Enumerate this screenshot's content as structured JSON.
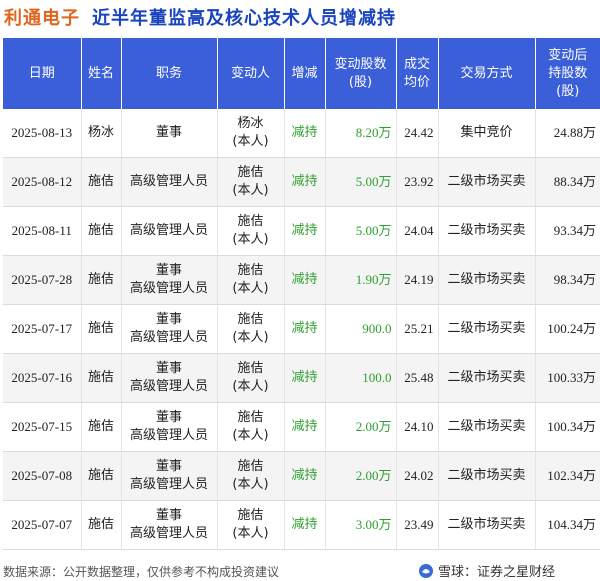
{
  "title": {
    "stock_name": "利通电子",
    "heading": "近半年董监高及核心技术人员增减持"
  },
  "table": {
    "headers": [
      "日期",
      "姓名",
      "职务",
      "变动人",
      "增减",
      "变动股数\n(股)",
      "成交\n均价",
      "交易方式",
      "变动后\n持股数\n(股)"
    ],
    "rows": [
      {
        "date": "2025-08-13",
        "name": "杨冰",
        "position": [
          "董事"
        ],
        "changer": [
          "杨冰",
          "(本人)"
        ],
        "direction": "减持",
        "shares": "8.20万",
        "price": "24.42",
        "method": "集中竞价",
        "after": "24.88万"
      },
      {
        "date": "2025-08-12",
        "name": "施佶",
        "position": [
          "高级管理人员"
        ],
        "changer": [
          "施佶",
          "(本人)"
        ],
        "direction": "减持",
        "shares": "5.00万",
        "price": "23.92",
        "method": "二级市场买卖",
        "after": "88.34万"
      },
      {
        "date": "2025-08-11",
        "name": "施佶",
        "position": [
          "高级管理人员"
        ],
        "changer": [
          "施佶",
          "(本人)"
        ],
        "direction": "减持",
        "shares": "5.00万",
        "price": "24.04",
        "method": "二级市场买卖",
        "after": "93.34万"
      },
      {
        "date": "2025-07-28",
        "name": "施佶",
        "position": [
          "董事",
          "高级管理人员"
        ],
        "changer": [
          "施佶",
          "(本人)"
        ],
        "direction": "减持",
        "shares": "1.90万",
        "price": "24.19",
        "method": "二级市场买卖",
        "after": "98.34万"
      },
      {
        "date": "2025-07-17",
        "name": "施佶",
        "position": [
          "董事",
          "高级管理人员"
        ],
        "changer": [
          "施佶",
          "(本人)"
        ],
        "direction": "减持",
        "shares": "900.0",
        "price": "25.21",
        "method": "二级市场买卖",
        "after": "100.24万"
      },
      {
        "date": "2025-07-16",
        "name": "施佶",
        "position": [
          "董事",
          "高级管理人员"
        ],
        "changer": [
          "施佶",
          "(本人)"
        ],
        "direction": "减持",
        "shares": "100.0",
        "price": "25.48",
        "method": "二级市场买卖",
        "after": "100.33万"
      },
      {
        "date": "2025-07-15",
        "name": "施佶",
        "position": [
          "董事",
          "高级管理人员"
        ],
        "changer": [
          "施佶",
          "(本人)"
        ],
        "direction": "减持",
        "shares": "2.00万",
        "price": "24.10",
        "method": "二级市场买卖",
        "after": "100.34万"
      },
      {
        "date": "2025-07-08",
        "name": "施佶",
        "position": [
          "董事",
          "高级管理人员"
        ],
        "changer": [
          "施佶",
          "(本人)"
        ],
        "direction": "减持",
        "shares": "2.00万",
        "price": "24.02",
        "method": "二级市场买卖",
        "after": "102.34万"
      },
      {
        "date": "2025-07-07",
        "name": "施佶",
        "position": [
          "董事",
          "高级管理人员"
        ],
        "changer": [
          "施佶",
          "(本人)"
        ],
        "direction": "减持",
        "shares": "3.00万",
        "price": "23.49",
        "method": "二级市场买卖",
        "after": "104.34万"
      }
    ]
  },
  "footer": {
    "source": "数据来源：公开数据整理，仅供参考不构成投资建议",
    "brand": "雪球：证券之星财经"
  },
  "watermark": "证券之星",
  "colors": {
    "header_bg": "#3b5fd8",
    "title_blue": "#1a44bf",
    "stock_orange": "#e0661e",
    "decrease_green": "#2fa02f"
  }
}
